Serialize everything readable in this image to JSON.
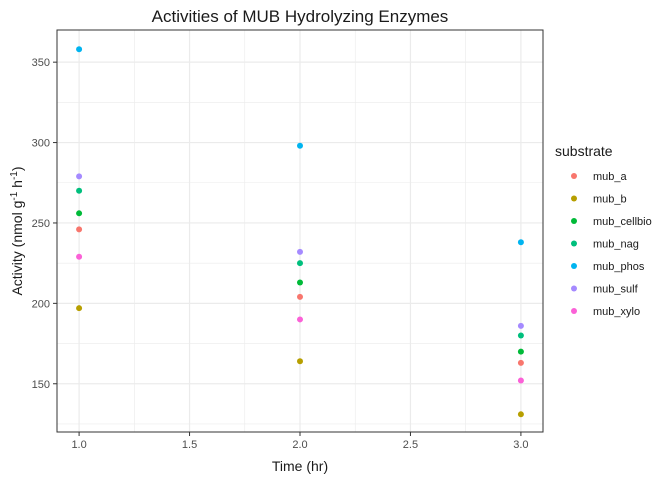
{
  "chart_data": {
    "type": "scatter",
    "title": "Activities of MUB Hydrolyzing Enzymes",
    "xlabel": "Time (hr)",
    "ylabel": {
      "base": "Activity (nmol g",
      "sup1": "-1",
      "mid": " h",
      "sup2": "-1",
      "end": ")"
    },
    "xlim": [
      0.9,
      3.1
    ],
    "ylim": [
      120,
      370
    ],
    "x_ticks": [
      1.0,
      1.5,
      2.0,
      2.5,
      3.0
    ],
    "x_tick_labels": [
      "1.0",
      "1.5",
      "2.0",
      "2.5",
      "3.0"
    ],
    "y_ticks": [
      150,
      200,
      250,
      300,
      350
    ],
    "y_tick_labels": [
      "150",
      "200",
      "250",
      "300",
      "350"
    ],
    "grid": true,
    "legend": {
      "title": "substrate",
      "position": "right"
    },
    "series": [
      {
        "name": "mub_a",
        "color": "#F8766D",
        "x": [
          1,
          2,
          3
        ],
        "y": [
          246,
          204,
          163
        ]
      },
      {
        "name": "mub_b",
        "color": "#B79F00",
        "x": [
          1,
          2,
          3
        ],
        "y": [
          197,
          164,
          131
        ]
      },
      {
        "name": "mub_cellbio",
        "color": "#00BA38",
        "x": [
          1,
          2,
          3
        ],
        "y": [
          256,
          213,
          170
        ]
      },
      {
        "name": "mub_nag",
        "color": "#00BF7D",
        "x": [
          1,
          2,
          3
        ],
        "y": [
          270,
          225,
          180
        ]
      },
      {
        "name": "mub_phos",
        "color": "#00B4F0",
        "x": [
          1,
          2,
          3
        ],
        "y": [
          358,
          298,
          238
        ]
      },
      {
        "name": "mub_sulf",
        "color": "#A58AFF",
        "x": [
          1,
          2,
          3
        ],
        "y": [
          279,
          232,
          186
        ]
      },
      {
        "name": "mub_xylo",
        "color": "#FB61D7",
        "x": [
          1,
          2,
          3
        ],
        "y": [
          229,
          190,
          152
        ]
      }
    ]
  }
}
